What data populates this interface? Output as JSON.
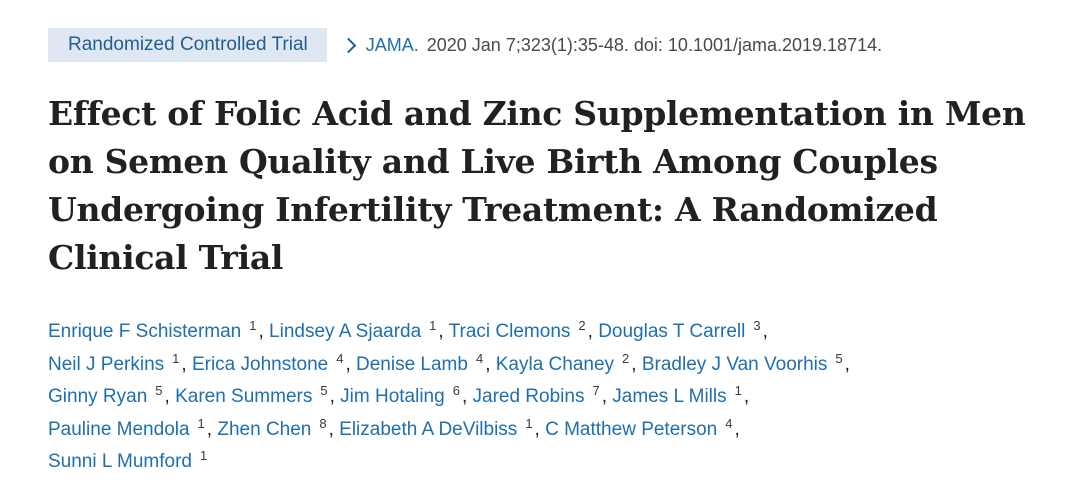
{
  "header": {
    "article_type": "Randomized Controlled Trial",
    "journal": "JAMA.",
    "citation": "2020 Jan 7;323(1):35-48. doi: 10.1001/jama.2019.18714."
  },
  "article": {
    "title": "Effect of Folic Acid and Zinc Supplementation in Men on Semen Quality and Live Birth Among Couples Undergoing Infertility Treatment: A Randomized Clinical Trial"
  },
  "authors": [
    {
      "name": "Enrique F Schisterman",
      "aff": "1"
    },
    {
      "name": "Lindsey A Sjaarda",
      "aff": "1"
    },
    {
      "name": "Traci Clemons",
      "aff": "2"
    },
    {
      "name": "Douglas T Carrell",
      "aff": "3"
    },
    {
      "name": "Neil J Perkins",
      "aff": "1"
    },
    {
      "name": "Erica Johnstone",
      "aff": "4"
    },
    {
      "name": "Denise Lamb",
      "aff": "4"
    },
    {
      "name": "Kayla Chaney",
      "aff": "2"
    },
    {
      "name": "Bradley J Van Voorhis",
      "aff": "5"
    },
    {
      "name": "Ginny Ryan",
      "aff": "5"
    },
    {
      "name": "Karen Summers",
      "aff": "5"
    },
    {
      "name": "Jim Hotaling",
      "aff": "6"
    },
    {
      "name": "Jared Robins",
      "aff": "7"
    },
    {
      "name": "James L Mills",
      "aff": "1"
    },
    {
      "name": "Pauline Mendola",
      "aff": "1"
    },
    {
      "name": "Zhen Chen",
      "aff": "8"
    },
    {
      "name": "Elizabeth A DeVilbiss",
      "aff": "1"
    },
    {
      "name": "C Matthew Peterson",
      "aff": "4"
    },
    {
      "name": "Sunni L Mumford",
      "aff": "1"
    }
  ],
  "colors": {
    "badge_bg": "#dfe8f2",
    "link": "#1f6fae",
    "title": "#212121"
  }
}
